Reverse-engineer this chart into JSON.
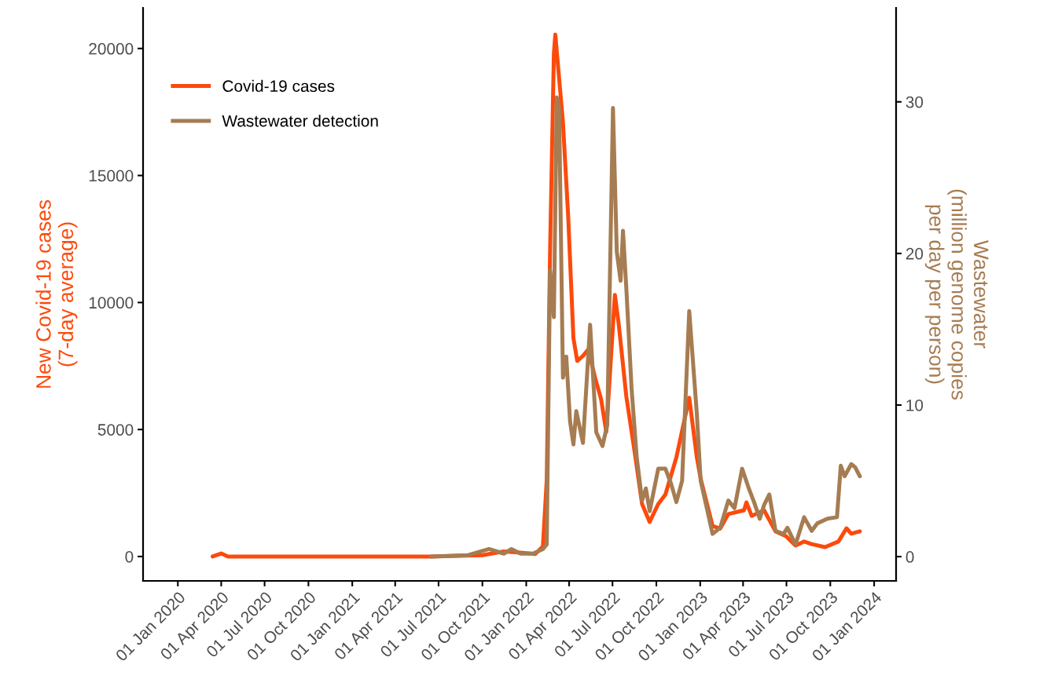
{
  "chart_data": {
    "type": "line",
    "ylabel": "New Covid-19 cases\n(7-day average)",
    "y2label": "Wastewater\n(million genome copies\nper day per person)",
    "xlim": [
      "2019-10-20",
      "2024-02-16"
    ],
    "xticks": [
      {
        "value": "2020-01-01",
        "label": "01 Jan 2020"
      },
      {
        "value": "2020-04-01",
        "label": "01 Apr 2020"
      },
      {
        "value": "2020-07-01",
        "label": "01 Jul 2020"
      },
      {
        "value": "2020-10-01",
        "label": "01 Oct 2020"
      },
      {
        "value": "2021-01-01",
        "label": "01 Jan 2021"
      },
      {
        "value": "2021-04-01",
        "label": "01 Apr 2021"
      },
      {
        "value": "2021-07-01",
        "label": "01 Jul 2021"
      },
      {
        "value": "2021-10-01",
        "label": "01 Oct 2021"
      },
      {
        "value": "2022-01-01",
        "label": "01 Jan 2022"
      },
      {
        "value": "2022-04-01",
        "label": "01 Apr 2022"
      },
      {
        "value": "2022-07-01",
        "label": "01 Jul 2022"
      },
      {
        "value": "2022-10-01",
        "label": "01 Oct 2022"
      },
      {
        "value": "2023-01-01",
        "label": "01 Jan 2023"
      },
      {
        "value": "2023-04-01",
        "label": "01 Apr 2023"
      },
      {
        "value": "2023-07-01",
        "label": "01 Jul 2023"
      },
      {
        "value": "2023-10-01",
        "label": "01 Oct 2023"
      },
      {
        "value": "2024-01-01",
        "label": "01 Jan 2024"
      }
    ],
    "ylim": [
      -960,
      21600
    ],
    "yticks": [
      0,
      5000,
      10000,
      15000,
      20000
    ],
    "y2lim": [
      -1.6,
      36.2
    ],
    "y2ticks": [
      0,
      10,
      20,
      30
    ],
    "legend": "top left",
    "grid": false,
    "marker": "none",
    "line_style": "solid",
    "series": [
      {
        "name": "Covid-19 cases",
        "color": "#fc4a0c",
        "x": [
          "2020-03-14",
          "2020-04-01",
          "2020-04-15",
          "2021-06-15",
          "2021-10-01",
          "2021-11-15",
          "2021-12-20",
          "2022-01-20",
          "2022-02-05",
          "2022-02-13",
          "2022-02-20",
          "2022-02-28",
          "2022-03-03",
          "2022-03-06",
          "2022-03-19",
          "2022-03-30",
          "2022-04-10",
          "2022-04-18",
          "2022-04-30",
          "2022-05-11",
          "2022-05-26",
          "2022-06-07",
          "2022-06-18",
          "2022-07-06",
          "2022-07-14",
          "2022-07-30",
          "2022-08-17",
          "2022-09-01",
          "2022-09-17",
          "2022-10-05",
          "2022-10-20",
          "2022-11-12",
          "2022-12-09",
          "2022-12-25",
          "2023-01-02",
          "2023-01-27",
          "2023-02-12",
          "2023-03-01",
          "2023-04-03",
          "2023-04-08",
          "2023-04-19",
          "2023-05-15",
          "2023-06-08",
          "2023-06-30",
          "2023-07-20",
          "2023-08-07",
          "2023-08-23",
          "2023-09-20",
          "2023-10-18",
          "2023-11-04",
          "2023-11-14",
          "2023-12-02"
        ],
        "values": [
          0,
          120,
          0,
          0,
          50,
          200,
          150,
          100,
          400,
          3000,
          12000,
          19800,
          20550,
          19900,
          17100,
          13400,
          8600,
          7700,
          7900,
          8150,
          7000,
          6200,
          4900,
          10300,
          9150,
          6300,
          4050,
          2070,
          1360,
          2070,
          2440,
          3900,
          6250,
          3900,
          3060,
          1200,
          1100,
          1670,
          1820,
          2130,
          1600,
          1820,
          990,
          800,
          430,
          590,
          490,
          370,
          590,
          1110,
          900,
          990
        ]
      },
      {
        "name": "Wastewater detection",
        "color": "#a67c52",
        "axis": "y2",
        "x": [
          "2021-06-15",
          "2021-09-01",
          "2021-10-15",
          "2021-11-15",
          "2021-12-01",
          "2021-12-20",
          "2022-01-15",
          "2022-02-05",
          "2022-02-13",
          "2022-02-20",
          "2022-02-28",
          "2022-03-06",
          "2022-03-11",
          "2022-03-19",
          "2022-03-26",
          "2022-04-03",
          "2022-04-10",
          "2022-04-16",
          "2022-04-30",
          "2022-05-15",
          "2022-05-28",
          "2022-06-10",
          "2022-06-20",
          "2022-07-02",
          "2022-07-10",
          "2022-07-18",
          "2022-07-23",
          "2022-07-30",
          "2022-08-10",
          "2022-08-21",
          "2022-09-01",
          "2022-09-09",
          "2022-09-17",
          "2022-10-05",
          "2022-10-20",
          "2022-11-01",
          "2022-11-12",
          "2022-11-24",
          "2022-12-09",
          "2022-12-25",
          "2023-01-02",
          "2023-01-27",
          "2023-02-12",
          "2023-03-01",
          "2023-03-14",
          "2023-03-30",
          "2023-04-13",
          "2023-04-24",
          "2023-05-06",
          "2023-05-15",
          "2023-05-26",
          "2023-06-08",
          "2023-06-25",
          "2023-07-03",
          "2023-07-20",
          "2023-08-07",
          "2023-08-23",
          "2023-09-04",
          "2023-09-25",
          "2023-10-15",
          "2023-10-23",
          "2023-10-31",
          "2023-11-14",
          "2023-11-22",
          "2023-12-02"
        ],
        "values": [
          0,
          0.1,
          0.5,
          0.2,
          0.5,
          0.2,
          0.2,
          0.5,
          0.8,
          18.9,
          15.8,
          30.3,
          29.6,
          11.8,
          13.2,
          8.9,
          7.4,
          9.6,
          7.5,
          15.3,
          8.2,
          7.3,
          8.7,
          29.6,
          20.1,
          18.2,
          21.5,
          17.7,
          11.1,
          6.5,
          3.7,
          4.5,
          3.0,
          5.8,
          5.8,
          4.8,
          3.6,
          5.0,
          16.2,
          9.4,
          5.0,
          1.5,
          1.9,
          3.7,
          3.2,
          5.8,
          4.5,
          3.6,
          2.5,
          3.4,
          4.1,
          1.7,
          1.5,
          1.9,
          0.8,
          2.6,
          1.7,
          2.2,
          2.5,
          2.6,
          6.0,
          5.3,
          6.1,
          5.9,
          5.3
        ]
      }
    ]
  }
}
